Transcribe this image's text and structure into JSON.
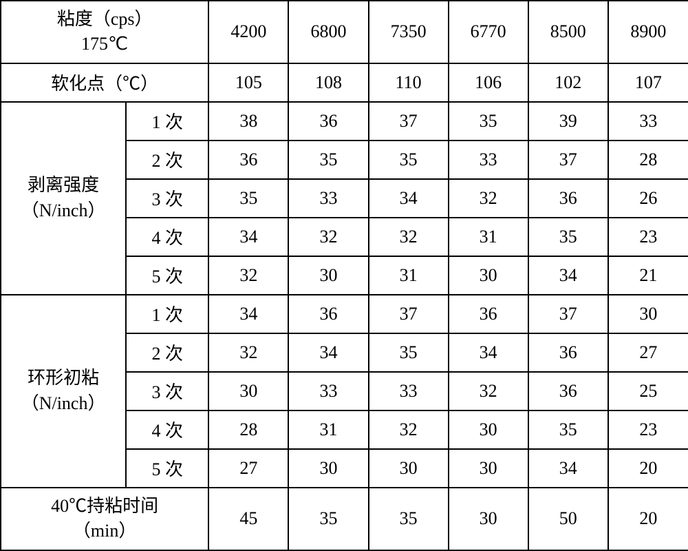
{
  "table": {
    "headers": {
      "viscosity": "粘度（cps）<br>175℃",
      "softening": "软化点（℃）",
      "peel_strength": "剥离强度<br>（N/inch）",
      "loop_tack": "环形初粘<br>（N/inch）",
      "hold_time": "40℃持粘时间<br>（min）"
    },
    "trial_labels": [
      "1 次",
      "2 次",
      "3 次",
      "4 次",
      "5 次"
    ],
    "viscosity_row": [
      "4200",
      "6800",
      "7350",
      "6770",
      "8500",
      "8900"
    ],
    "softening_row": [
      "105",
      "108",
      "110",
      "106",
      "102",
      "107"
    ],
    "peel_rows": [
      [
        "38",
        "36",
        "37",
        "35",
        "39",
        "33"
      ],
      [
        "36",
        "35",
        "35",
        "33",
        "37",
        "28"
      ],
      [
        "35",
        "33",
        "34",
        "32",
        "36",
        "26"
      ],
      [
        "34",
        "32",
        "32",
        "31",
        "35",
        "23"
      ],
      [
        "32",
        "30",
        "31",
        "30",
        "34",
        "21"
      ]
    ],
    "loop_rows": [
      [
        "34",
        "36",
        "37",
        "36",
        "37",
        "30"
      ],
      [
        "32",
        "34",
        "35",
        "34",
        "36",
        "27"
      ],
      [
        "30",
        "33",
        "33",
        "32",
        "36",
        "25"
      ],
      [
        "28",
        "31",
        "32",
        "30",
        "35",
        "23"
      ],
      [
        "27",
        "30",
        "30",
        "30",
        "34",
        "20"
      ]
    ],
    "hold_row": [
      "45",
      "35",
      "35",
      "30",
      "50",
      "20"
    ],
    "border_color": "#000000",
    "background_color": "#ffffff",
    "text_color": "#000000",
    "font_size": 26
  }
}
